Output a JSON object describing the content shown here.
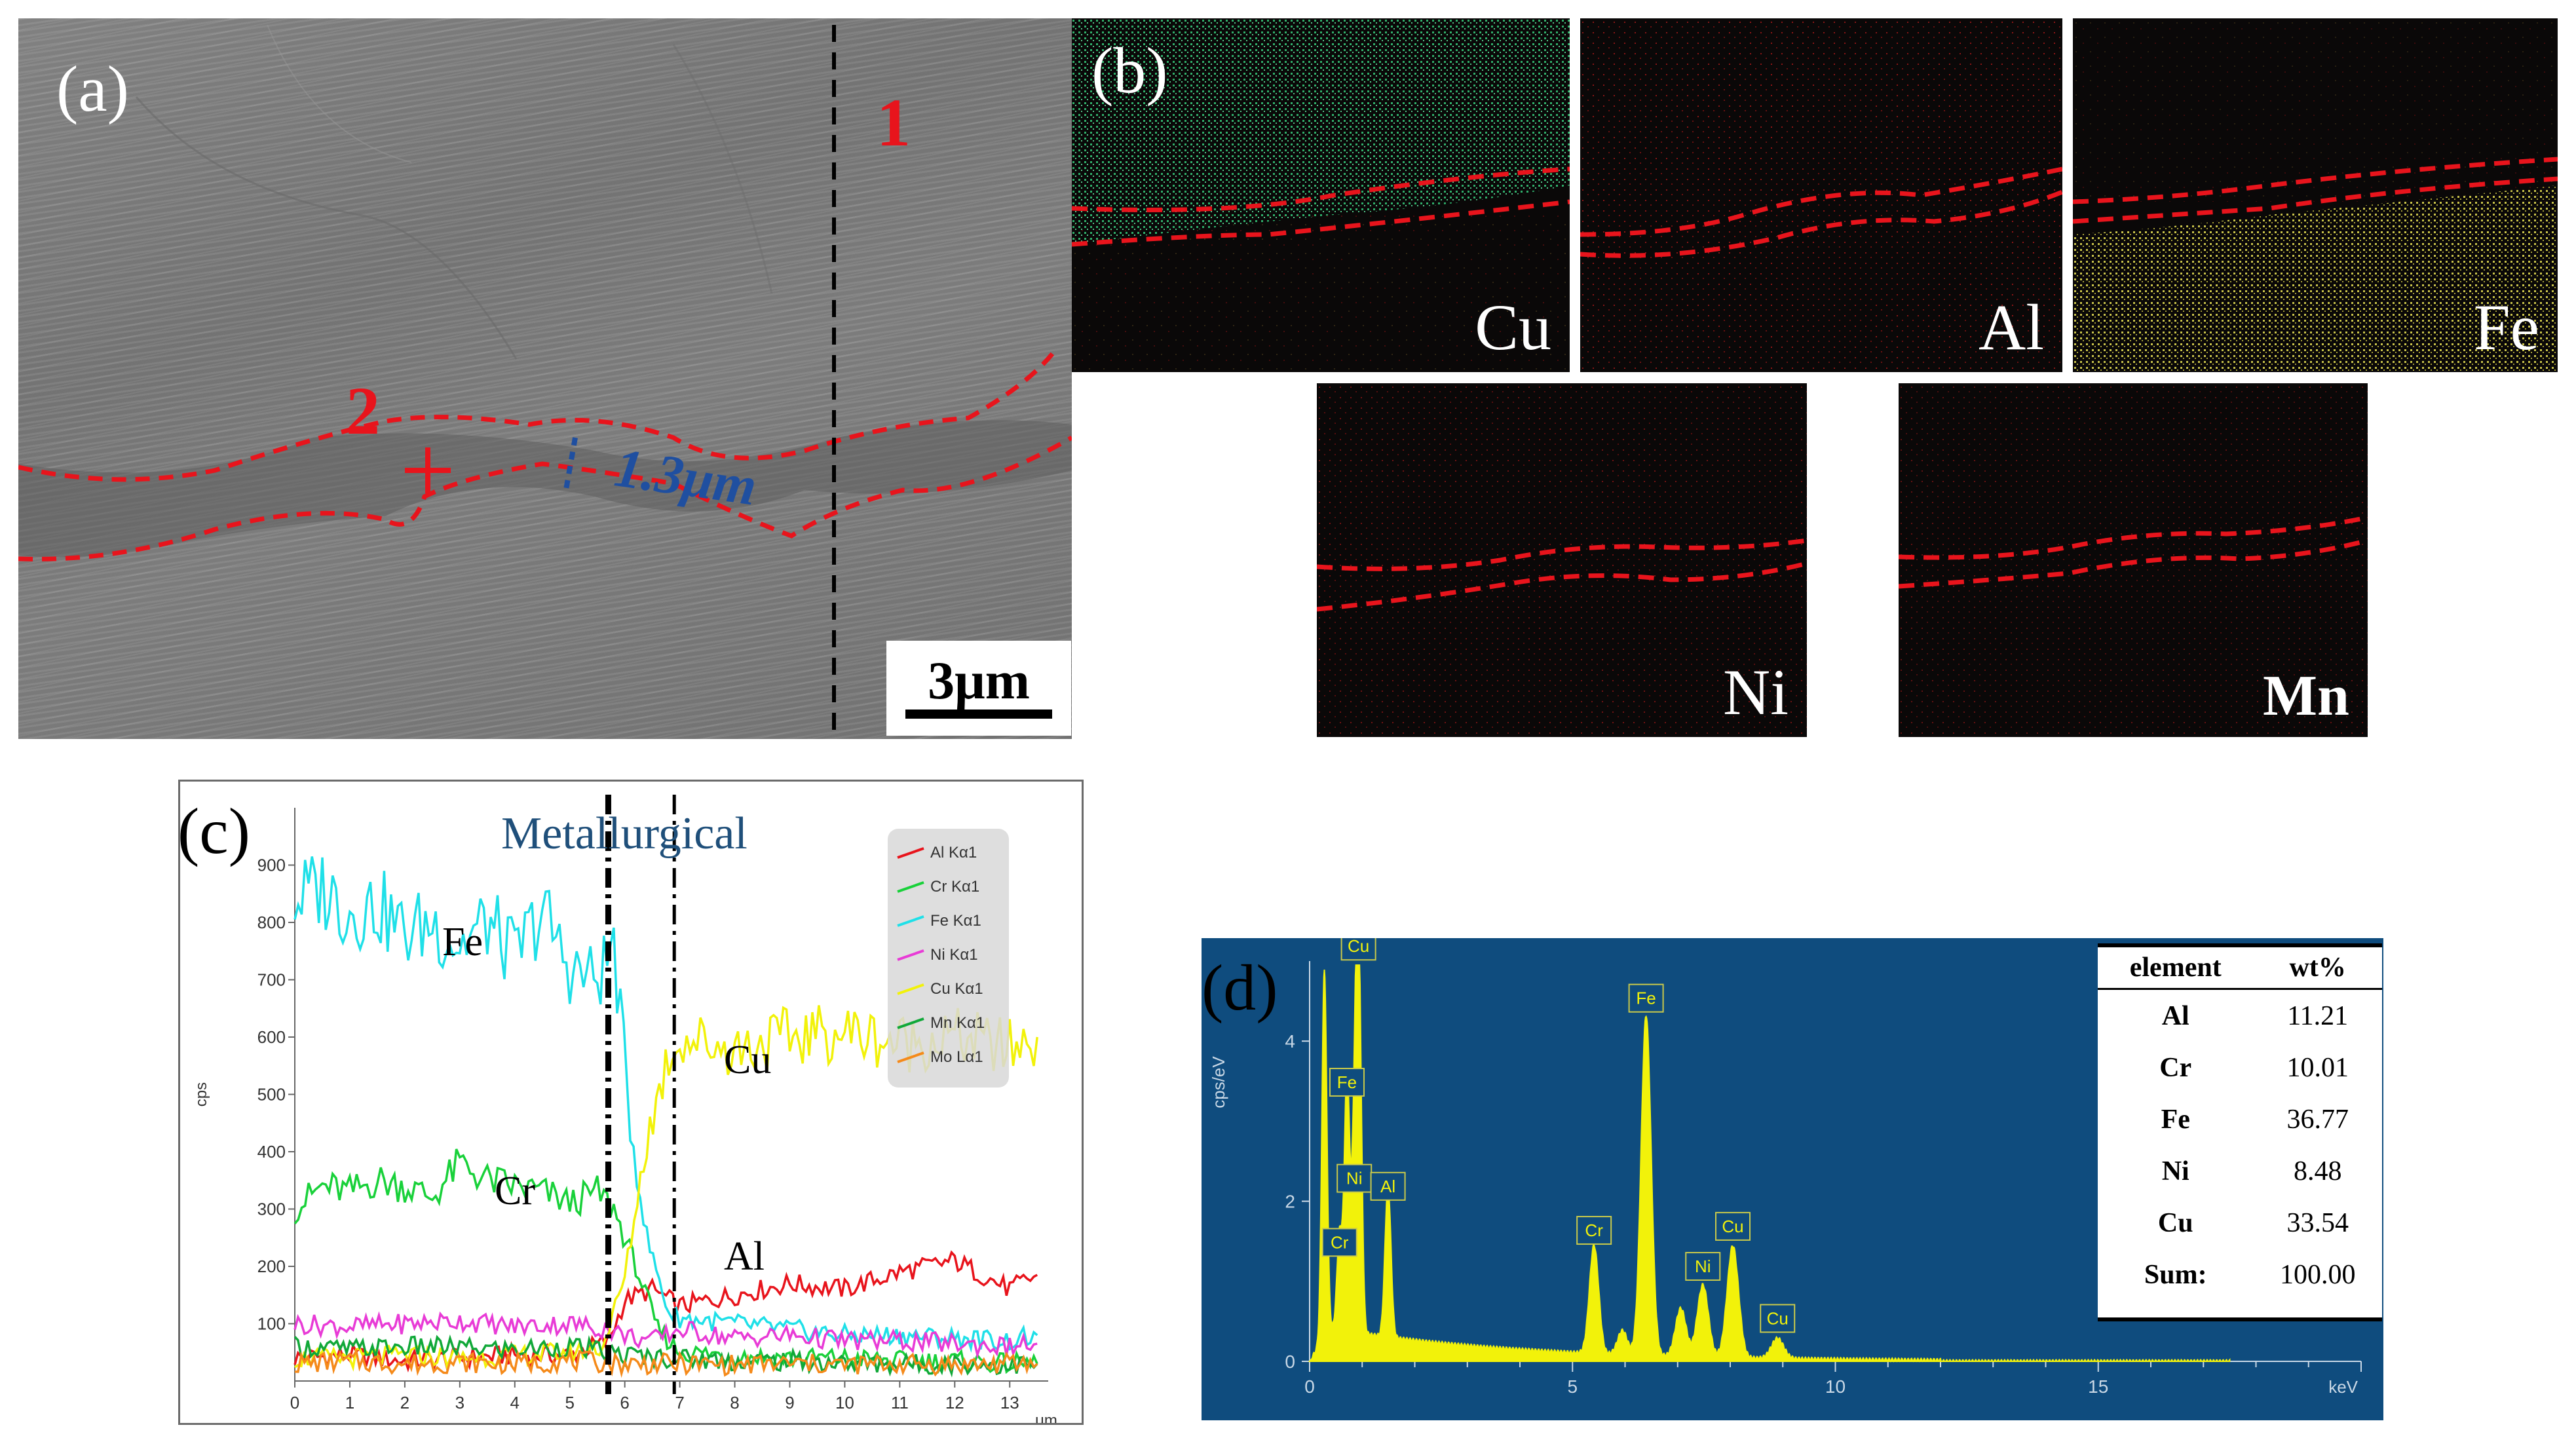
{
  "panel_a": {
    "label": "(a)",
    "marker_1": "1",
    "marker_2": "2",
    "thickness": "1.3μm",
    "scale_bar": "3μm"
  },
  "panel_b": {
    "label": "(b)",
    "maps": [
      {
        "element": "Cu",
        "color": "#2fae6a"
      },
      {
        "element": "Al",
        "color": "#b01818"
      },
      {
        "element": "Fe",
        "color": "#c8c24a"
      },
      {
        "element": "Ni",
        "color": "#9a1a1a"
      },
      {
        "element": "Mn",
        "color": "#8a1515"
      }
    ]
  },
  "panel_c": {
    "label": "(c)",
    "title": "Metallurgical",
    "annotations": [
      "Fe",
      "Cr",
      "Cu",
      "Al"
    ]
  },
  "panel_d": {
    "label": "(d)",
    "peak_labels": [
      "Cu",
      "Fe",
      "Ni",
      "Al",
      "Cr",
      "Cr",
      "Cu",
      "Ni",
      "Fe",
      "Cu"
    ],
    "table": {
      "headers": [
        "element",
        "wt%"
      ],
      "rows": [
        {
          "element": "Al",
          "wt": "11.21"
        },
        {
          "element": "Cr",
          "wt": "10.01"
        },
        {
          "element": "Fe",
          "wt": "36.77"
        },
        {
          "element": "Ni",
          "wt": "8.48"
        },
        {
          "element": "Cu",
          "wt": "33.54"
        },
        {
          "element": "Sum:",
          "wt": "100.00"
        }
      ]
    }
  },
  "chart_data": [
    {
      "type": "line",
      "title": "Metallurgical",
      "xlabel": "μm",
      "ylabel": "cps",
      "xlim": [
        0,
        13.7
      ],
      "ylim": [
        0,
        1000
      ],
      "x_ticks": [
        0,
        1,
        2,
        3,
        4,
        5,
        6,
        7,
        8,
        9,
        10,
        11,
        12,
        13
      ],
      "y_ticks": [
        100,
        200,
        300,
        400,
        500,
        600,
        700,
        800,
        900
      ],
      "interface_lines_x": [
        5.7,
        6.9
      ],
      "legend": [
        "Al Kα1",
        "Cr Kα1",
        "Fe Kα1",
        "Ni Kα1",
        "Cu Kα1",
        "Mn Kα1",
        "Mo Lα1"
      ],
      "series": [
        {
          "name": "Al Kα1",
          "color": "#e8141c",
          "x": [
            0,
            1,
            2,
            3,
            4,
            5,
            5.7,
            6,
            6.5,
            7,
            8,
            9,
            10,
            11,
            12,
            13,
            13.5
          ],
          "values": [
            40,
            45,
            35,
            40,
            45,
            45,
            70,
            140,
            160,
            130,
            150,
            170,
            160,
            190,
            210,
            160,
            185
          ]
        },
        {
          "name": "Cr Kα1",
          "color": "#19d13a",
          "x": [
            0,
            0.5,
            1,
            1.5,
            2,
            2.5,
            3,
            3.5,
            4,
            4.5,
            5,
            5.5,
            5.8,
            6.2,
            6.6,
            7,
            8,
            9,
            10,
            11,
            12,
            13,
            13.5
          ],
          "values": [
            300,
            340,
            330,
            350,
            340,
            320,
            380,
            350,
            340,
            330,
            310,
            330,
            300,
            200,
            90,
            50,
            45,
            40,
            40,
            35,
            35,
            30,
            30
          ]
        },
        {
          "name": "Fe Kα1",
          "color": "#1fe0e8",
          "x": [
            0,
            0.5,
            1,
            1.5,
            2,
            2.5,
            3,
            3.5,
            4,
            4.5,
            5,
            5.5,
            5.8,
            6.1,
            6.4,
            6.8,
            7,
            8,
            9,
            10,
            11,
            12,
            13,
            13.5
          ],
          "values": [
            840,
            860,
            820,
            830,
            780,
            800,
            760,
            800,
            740,
            820,
            720,
            700,
            760,
            450,
            250,
            120,
            110,
            100,
            90,
            80,
            80,
            75,
            70,
            80
          ]
        },
        {
          "name": "Ni Kα1",
          "color": "#e83bd6",
          "x": [
            0,
            1,
            2,
            3,
            4,
            5,
            5.7,
            6,
            6.5,
            7,
            8,
            9,
            10,
            11,
            12,
            13,
            13.5
          ],
          "values": [
            100,
            95,
            100,
            105,
            95,
            100,
            90,
            80,
            70,
            90,
            75,
            80,
            70,
            70,
            65,
            60,
            65
          ]
        },
        {
          "name": "Cu Kα1",
          "color": "#f2f20a",
          "x": [
            0,
            1,
            2,
            3,
            4,
            5,
            5.6,
            6,
            6.4,
            6.8,
            7,
            7.5,
            8,
            9,
            10,
            11,
            12,
            13,
            13.5
          ],
          "values": [
            40,
            40,
            45,
            40,
            45,
            50,
            60,
            180,
            420,
            570,
            600,
            590,
            580,
            600,
            610,
            590,
            600,
            580,
            600
          ]
        },
        {
          "name": "Mn Kα1",
          "color": "#10a838",
          "x": [
            0,
            1,
            2,
            3,
            4,
            5,
            6,
            7,
            8,
            9,
            10,
            11,
            12,
            13,
            13.5
          ],
          "values": [
            60,
            55,
            60,
            58,
            55,
            60,
            45,
            40,
            35,
            35,
            30,
            30,
            30,
            28,
            30
          ]
        },
        {
          "name": "Mo Lα1",
          "color": "#f58a1a",
          "x": [
            0,
            1,
            2,
            3,
            4,
            5,
            6,
            7,
            8,
            9,
            10,
            11,
            12,
            13,
            13.5
          ],
          "values": [
            30,
            35,
            30,
            32,
            30,
            35,
            30,
            30,
            28,
            30,
            28,
            30,
            28,
            30,
            30
          ]
        }
      ]
    },
    {
      "type": "line",
      "xlabel": "keV",
      "ylabel": "cps/eV",
      "xlim": [
        0,
        20
      ],
      "ylim": [
        0,
        5
      ],
      "x_ticks": [
        0,
        5,
        10,
        15
      ],
      "y_ticks": [
        0,
        2,
        4
      ],
      "series": [
        {
          "name": "spectrum",
          "color": "#f2f20a",
          "peaks": [
            {
              "keV": 0.28,
              "height": 4.6,
              "label": ""
            },
            {
              "keV": 0.57,
              "height": 1.2,
              "label": "Cr"
            },
            {
              "keV": 0.71,
              "height": 3.2,
              "label": "Fe"
            },
            {
              "keV": 0.85,
              "height": 2.0,
              "label": "Ni"
            },
            {
              "keV": 0.93,
              "height": 4.9,
              "label": "Cu"
            },
            {
              "keV": 1.49,
              "height": 1.9,
              "label": "Al"
            },
            {
              "keV": 5.41,
              "height": 1.35,
              "label": "Cr"
            },
            {
              "keV": 5.95,
              "height": 0.3,
              "label": ""
            },
            {
              "keV": 6.4,
              "height": 4.25,
              "label": "Fe"
            },
            {
              "keV": 7.06,
              "height": 0.6,
              "label": ""
            },
            {
              "keV": 7.48,
              "height": 0.9,
              "label": "Ni"
            },
            {
              "keV": 8.05,
              "height": 1.4,
              "label": "Cu"
            },
            {
              "keV": 8.9,
              "height": 0.25,
              "label": "Cu"
            }
          ]
        }
      ]
    }
  ]
}
